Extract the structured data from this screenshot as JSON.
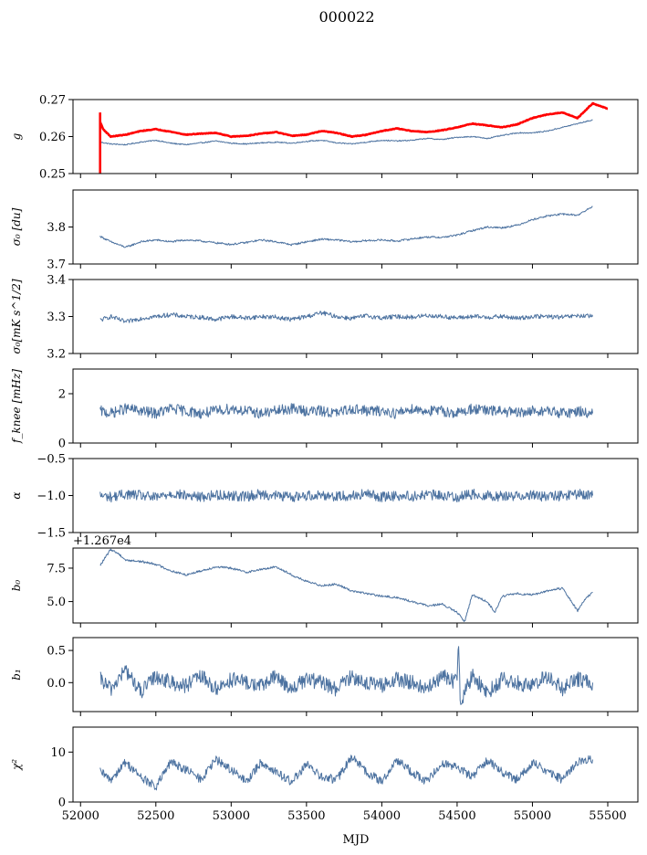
{
  "figure": {
    "suptitle": "000022",
    "xlabel": "MJD"
  },
  "colors": {
    "series": "#4c72a0",
    "reference": "#ff0000"
  },
  "chart_data": [
    {
      "type": "line",
      "id": "g",
      "ylabel": "$g$",
      "ylabel_text": "g",
      "xlim": [
        51950,
        55700
      ],
      "ylim": [
        0.25,
        0.27
      ],
      "yticks": [
        0.25,
        0.26,
        0.27
      ],
      "ytick_labels": [
        "0.25",
        "0.26",
        "0.27"
      ],
      "series": [
        {
          "color": "#4c72a0",
          "x": [
            52130,
            52200,
            52300,
            52400,
            52500,
            52600,
            52700,
            52800,
            52900,
            53000,
            53100,
            53200,
            53300,
            53400,
            53500,
            53600,
            53700,
            53800,
            53900,
            54000,
            54100,
            54200,
            54300,
            54400,
            54500,
            54600,
            54700,
            54800,
            54900,
            55000,
            55100,
            55200,
            55300,
            55400
          ],
          "y": [
            0.2585,
            0.258,
            0.2578,
            0.2585,
            0.259,
            0.2582,
            0.2578,
            0.2583,
            0.2588,
            0.2582,
            0.258,
            0.2583,
            0.2585,
            0.2582,
            0.2587,
            0.259,
            0.2583,
            0.258,
            0.2585,
            0.259,
            0.2588,
            0.259,
            0.2595,
            0.2592,
            0.2598,
            0.26,
            0.2595,
            0.2603,
            0.261,
            0.261,
            0.2615,
            0.2625,
            0.2635,
            0.2645
          ]
        },
        {
          "color": "#ff0000",
          "x": [
            52130,
            52150,
            52200,
            52300,
            52400,
            52500,
            52600,
            52700,
            52800,
            52900,
            53000,
            53100,
            53200,
            53300,
            53400,
            53500,
            53600,
            53700,
            53800,
            53900,
            54000,
            54100,
            54200,
            54300,
            54400,
            54500,
            54600,
            54700,
            54800,
            54900,
            55000,
            55100,
            55200,
            55300,
            55400,
            55500
          ],
          "y": [
            0.264,
            0.262,
            0.26,
            0.2605,
            0.2615,
            0.262,
            0.2613,
            0.2605,
            0.2608,
            0.261,
            0.26,
            0.2602,
            0.2608,
            0.2612,
            0.2602,
            0.2605,
            0.2615,
            0.261,
            0.26,
            0.2605,
            0.2615,
            0.2622,
            0.2615,
            0.2612,
            0.2617,
            0.2625,
            0.2635,
            0.263,
            0.2625,
            0.2633,
            0.265,
            0.266,
            0.2665,
            0.265,
            0.269,
            0.2675
          ]
        }
      ]
    },
    {
      "type": "line",
      "id": "sigma0_du",
      "ylabel": "$\\sigma_0$ [du]",
      "ylabel_text": "σ₀ [du]",
      "xlim": [
        51950,
        55700
      ],
      "ylim": [
        3.7,
        3.9
      ],
      "yticks": [
        3.7,
        3.8
      ],
      "ytick_labels": [
        "3.7",
        "3.8"
      ],
      "series": [
        {
          "color": "#4c72a0",
          "x": [
            52130,
            52200,
            52300,
            52400,
            52500,
            52600,
            52700,
            52800,
            52900,
            53000,
            53100,
            53200,
            53300,
            53400,
            53500,
            53600,
            53700,
            53800,
            53900,
            54000,
            54100,
            54200,
            54300,
            54400,
            54500,
            54600,
            54700,
            54800,
            54900,
            55000,
            55100,
            55200,
            55300,
            55400
          ],
          "y": [
            3.775,
            3.76,
            3.745,
            3.76,
            3.765,
            3.76,
            3.765,
            3.762,
            3.757,
            3.753,
            3.758,
            3.765,
            3.76,
            3.752,
            3.76,
            3.767,
            3.765,
            3.76,
            3.763,
            3.765,
            3.762,
            3.768,
            3.773,
            3.772,
            3.778,
            3.79,
            3.8,
            3.798,
            3.805,
            3.82,
            3.83,
            3.835,
            3.832,
            3.855
          ]
        }
      ]
    },
    {
      "type": "line",
      "id": "sigma0_mk",
      "ylabel": "$\\sigma_0$[mK s$^{1/2}$]",
      "ylabel_text": "σ₀[mK s^1/2]",
      "xlim": [
        51950,
        55700
      ],
      "ylim": [
        3.2,
        3.4
      ],
      "yticks": [
        3.2,
        3.3,
        3.4
      ],
      "ytick_labels": [
        "3.2",
        "3.3",
        "3.4"
      ],
      "series": [
        {
          "color": "#4c72a0",
          "x": [
            52130,
            52200,
            52300,
            52400,
            52500,
            52600,
            52700,
            52800,
            52900,
            53000,
            53100,
            53200,
            53300,
            53400,
            53500,
            53600,
            53700,
            53800,
            53900,
            54000,
            54100,
            54200,
            54300,
            54400,
            54500,
            54600,
            54700,
            54800,
            54900,
            55000,
            55100,
            55200,
            55300,
            55400
          ],
          "y": [
            3.29,
            3.3,
            3.285,
            3.295,
            3.3,
            3.305,
            3.3,
            3.298,
            3.292,
            3.3,
            3.296,
            3.3,
            3.298,
            3.292,
            3.3,
            3.31,
            3.3,
            3.295,
            3.302,
            3.296,
            3.3,
            3.298,
            3.303,
            3.3,
            3.296,
            3.3,
            3.298,
            3.3,
            3.295,
            3.3,
            3.3,
            3.298,
            3.302,
            3.3
          ]
        }
      ]
    },
    {
      "type": "line",
      "id": "fknee",
      "ylabel": "$f_{\\rm knee}$ [mHz]",
      "ylabel_text": "f_knee [mHz]",
      "xlim": [
        51950,
        55700
      ],
      "ylim": [
        0,
        3
      ],
      "yticks": [
        0,
        2
      ],
      "ytick_labels": [
        "0",
        "2"
      ],
      "series": [
        {
          "color": "#4c72a0",
          "x": [
            52130,
            52200,
            52300,
            52400,
            52500,
            52600,
            52700,
            52800,
            52900,
            53000,
            53100,
            53200,
            53300,
            53400,
            53500,
            53600,
            53700,
            53800,
            53900,
            54000,
            54100,
            54200,
            54300,
            54400,
            54500,
            54600,
            54700,
            54800,
            54900,
            55000,
            55100,
            55200,
            55300,
            55400
          ],
          "y": [
            1.3,
            1.2,
            1.4,
            1.3,
            1.2,
            1.4,
            1.3,
            1.2,
            1.3,
            1.4,
            1.3,
            1.2,
            1.3,
            1.4,
            1.3,
            1.3,
            1.2,
            1.4,
            1.3,
            1.3,
            1.2,
            1.4,
            1.3,
            1.3,
            1.2,
            1.4,
            1.3,
            1.3,
            1.2,
            1.3,
            1.3,
            1.2,
            1.3,
            1.2
          ]
        }
      ]
    },
    {
      "type": "line",
      "id": "alpha",
      "ylabel": "$\\alpha$",
      "ylabel_text": "α",
      "xlim": [
        51950,
        55700
      ],
      "ylim": [
        -1.5,
        -0.5
      ],
      "yticks": [
        -1.5,
        -1.0,
        -0.5
      ],
      "ytick_labels": [
        "−1.5",
        "−1.0",
        "−0.5"
      ],
      "series": [
        {
          "color": "#4c72a0",
          "x": [
            52130,
            52200,
            52300,
            52400,
            52500,
            52600,
            52700,
            52800,
            52900,
            53000,
            53100,
            53200,
            53300,
            53400,
            53500,
            53600,
            53700,
            53800,
            53900,
            54000,
            54100,
            54200,
            54300,
            54400,
            54500,
            54600,
            54700,
            54800,
            54900,
            55000,
            55100,
            55200,
            55300,
            55400
          ],
          "y": [
            -1.0,
            -1.02,
            -0.98,
            -1.0,
            -1.03,
            -0.97,
            -1.0,
            -1.02,
            -0.99,
            -1.0,
            -1.01,
            -0.98,
            -1.0,
            -1.02,
            -1.0,
            -0.99,
            -1.01,
            -1.0,
            -0.98,
            -1.02,
            -1.0,
            -1.01,
            -0.99,
            -1.0,
            -1.02,
            -0.98,
            -1.0,
            -1.01,
            -1.0,
            -0.99,
            -1.02,
            -1.0,
            -0.98,
            -1.0
          ]
        }
      ]
    },
    {
      "type": "line",
      "id": "b0",
      "ylabel": "$b_0$",
      "ylabel_text": "b₀",
      "offset_text": "+1.267e4",
      "xlim": [
        51950,
        55700
      ],
      "ylim": [
        3.4,
        9.0
      ],
      "yticks": [
        5.0,
        7.5
      ],
      "ytick_labels": [
        "5.0",
        "7.5"
      ],
      "series": [
        {
          "color": "#4c72a0",
          "x": [
            52130,
            52200,
            52250,
            52300,
            52400,
            52500,
            52600,
            52700,
            52800,
            52900,
            53000,
            53100,
            53200,
            53300,
            53400,
            53500,
            53600,
            53700,
            53800,
            53900,
            54000,
            54100,
            54200,
            54300,
            54400,
            54500,
            54550,
            54600,
            54700,
            54750,
            54800,
            54900,
            55000,
            55100,
            55200,
            55300,
            55350,
            55400
          ],
          "y": [
            7.7,
            8.9,
            8.6,
            8.1,
            8.0,
            7.8,
            7.3,
            7.0,
            7.3,
            7.6,
            7.5,
            7.2,
            7.4,
            7.6,
            7.0,
            6.5,
            6.2,
            6.3,
            5.8,
            5.6,
            5.4,
            5.3,
            5.0,
            4.7,
            4.8,
            4.2,
            3.5,
            5.5,
            5.0,
            4.2,
            5.4,
            5.6,
            5.5,
            5.8,
            6.0,
            4.3,
            5.2,
            5.7
          ]
        }
      ]
    },
    {
      "type": "line",
      "id": "b1",
      "ylabel": "$b_1$",
      "ylabel_text": "b₁",
      "xlim": [
        51950,
        55700
      ],
      "ylim": [
        -0.45,
        0.7
      ],
      "yticks": [
        0.0,
        0.5
      ],
      "ytick_labels": [
        "0.0",
        "0.5"
      ],
      "series": [
        {
          "color": "#4c72a0",
          "x": [
            52130,
            52200,
            52300,
            52400,
            52500,
            52600,
            52700,
            52800,
            52900,
            53000,
            53100,
            53200,
            53300,
            53400,
            53500,
            53600,
            53700,
            53800,
            53900,
            54000,
            54100,
            54200,
            54300,
            54400,
            54500,
            54510,
            54520,
            54600,
            54700,
            54800,
            54900,
            55000,
            55100,
            55200,
            55300,
            55400
          ],
          "y": [
            0.05,
            -0.1,
            0.2,
            -0.15,
            0.1,
            0.0,
            -0.05,
            0.1,
            -0.1,
            0.05,
            0.0,
            -0.05,
            0.1,
            -0.1,
            0.05,
            0.0,
            -0.1,
            0.1,
            0.0,
            -0.05,
            0.05,
            0.0,
            -0.1,
            0.1,
            0.0,
            0.62,
            -0.3,
            0.1,
            -0.15,
            0.05,
            0.0,
            -0.05,
            0.1,
            -0.1,
            0.05,
            0.0
          ]
        }
      ]
    },
    {
      "type": "line",
      "id": "chi2",
      "ylabel": "$\\chi^2$",
      "ylabel_text": "χ²",
      "xlim": [
        51950,
        55700
      ],
      "ylim": [
        0,
        15
      ],
      "yticks": [
        0,
        10
      ],
      "ytick_labels": [
        "0",
        "10"
      ],
      "xticks": [
        52000,
        52500,
        53000,
        53500,
        54000,
        54500,
        55000,
        55500
      ],
      "xtick_labels": [
        "52000",
        "52500",
        "53000",
        "53500",
        "54000",
        "54500",
        "55000",
        "55500"
      ],
      "series": [
        {
          "color": "#4c72a0",
          "x": [
            52130,
            52200,
            52300,
            52400,
            52500,
            52600,
            52700,
            52800,
            52900,
            53000,
            53100,
            53200,
            53300,
            53400,
            53500,
            53600,
            53700,
            53800,
            53900,
            54000,
            54100,
            54200,
            54300,
            54400,
            54500,
            54600,
            54700,
            54800,
            54900,
            55000,
            55100,
            55200,
            55300,
            55400
          ],
          "y": [
            6.0,
            4.5,
            8.0,
            5.0,
            3.0,
            8.0,
            6.5,
            4.5,
            8.5,
            6.5,
            4.0,
            8.0,
            6.0,
            4.0,
            7.5,
            5.0,
            4.5,
            9.0,
            6.0,
            4.0,
            8.5,
            6.0,
            4.0,
            8.0,
            7.0,
            5.0,
            8.5,
            6.0,
            4.5,
            8.0,
            6.0,
            4.5,
            8.0,
            8.5
          ]
        }
      ]
    }
  ]
}
